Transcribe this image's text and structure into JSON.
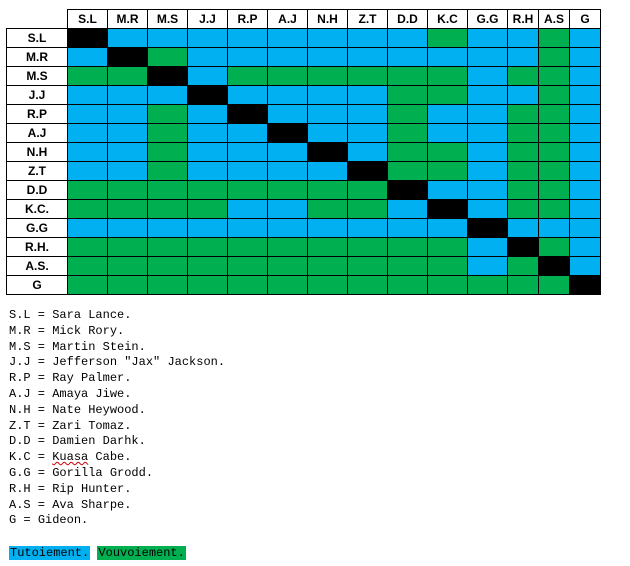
{
  "colors": {
    "tutoiement": "#00b0f0",
    "vouvoiement": "#00b050",
    "self": "#000000"
  },
  "matrix": {
    "columns": [
      "S.L",
      "M.R",
      "M.S",
      "J.J",
      "R.P",
      "A.J",
      "N.H",
      "Z.T",
      "D.D",
      "K.C",
      "G.G",
      "R.H",
      "A.S",
      "G"
    ],
    "rows": [
      {
        "label": "S.L",
        "cells": [
          "X",
          "T",
          "T",
          "T",
          "T",
          "T",
          "T",
          "T",
          "T",
          "V",
          "T",
          "T",
          "V",
          "T"
        ]
      },
      {
        "label": "M.R",
        "cells": [
          "T",
          "X",
          "V",
          "T",
          "T",
          "T",
          "T",
          "T",
          "T",
          "T",
          "T",
          "T",
          "V",
          "T"
        ]
      },
      {
        "label": "M.S",
        "cells": [
          "V",
          "V",
          "X",
          "T",
          "V",
          "V",
          "V",
          "V",
          "V",
          "V",
          "T",
          "V",
          "V",
          "T"
        ]
      },
      {
        "label": "J.J",
        "cells": [
          "T",
          "T",
          "T",
          "X",
          "T",
          "T",
          "T",
          "T",
          "V",
          "V",
          "T",
          "T",
          "V",
          "T"
        ]
      },
      {
        "label": "R.P",
        "cells": [
          "T",
          "T",
          "V",
          "T",
          "X",
          "T",
          "T",
          "T",
          "V",
          "T",
          "T",
          "V",
          "V",
          "T"
        ]
      },
      {
        "label": "A.J",
        "cells": [
          "T",
          "T",
          "V",
          "T",
          "T",
          "X",
          "T",
          "T",
          "V",
          "T",
          "T",
          "V",
          "V",
          "T"
        ]
      },
      {
        "label": "N.H",
        "cells": [
          "T",
          "T",
          "V",
          "T",
          "T",
          "T",
          "X",
          "T",
          "V",
          "V",
          "T",
          "V",
          "V",
          "T"
        ]
      },
      {
        "label": "Z.T",
        "cells": [
          "T",
          "T",
          "V",
          "T",
          "T",
          "T",
          "T",
          "X",
          "V",
          "V",
          "T",
          "V",
          "V",
          "T"
        ]
      },
      {
        "label": "D.D",
        "cells": [
          "V",
          "V",
          "V",
          "V",
          "V",
          "V",
          "V",
          "V",
          "X",
          "T",
          "T",
          "V",
          "V",
          "T"
        ]
      },
      {
        "label": "K.C.",
        "cells": [
          "V",
          "V",
          "V",
          "V",
          "T",
          "T",
          "V",
          "V",
          "T",
          "X",
          "T",
          "V",
          "V",
          "T"
        ]
      },
      {
        "label": "G.G",
        "cells": [
          "T",
          "T",
          "T",
          "T",
          "T",
          "T",
          "T",
          "T",
          "T",
          "T",
          "X",
          "T",
          "T",
          "T"
        ]
      },
      {
        "label": "R.H.",
        "cells": [
          "V",
          "V",
          "V",
          "V",
          "V",
          "V",
          "V",
          "V",
          "V",
          "V",
          "T",
          "X",
          "V",
          "T"
        ]
      },
      {
        "label": "A.S.",
        "cells": [
          "V",
          "V",
          "V",
          "V",
          "V",
          "V",
          "V",
          "V",
          "V",
          "V",
          "T",
          "V",
          "X",
          "T"
        ]
      },
      {
        "label": "G",
        "cells": [
          "V",
          "V",
          "V",
          "V",
          "V",
          "V",
          "V",
          "V",
          "V",
          "V",
          "V",
          "V",
          "V",
          "X"
        ]
      }
    ]
  },
  "legend": [
    {
      "abbr": "S.L",
      "name": "Sara Lance."
    },
    {
      "abbr": "M.R",
      "name": "Mick Rory."
    },
    {
      "abbr": "M.S",
      "name": "Martin Stein."
    },
    {
      "abbr": "J.J",
      "name": "Jefferson \"Jax\" Jackson."
    },
    {
      "abbr": "R.P",
      "name": "Ray Palmer."
    },
    {
      "abbr": "A.J",
      "name": "Amaya Jiwe."
    },
    {
      "abbr": "N.H",
      "name": "Nate Heywood."
    },
    {
      "abbr": "Z.T",
      "name": "Zari Tomaz."
    },
    {
      "abbr": "D.D",
      "name": "Damien Darhk."
    },
    {
      "abbr": "K.C",
      "name": "Kuasa Cabe."
    },
    {
      "abbr": "G.G",
      "name": "Gorilla Grodd."
    },
    {
      "abbr": "R.H",
      "name": "Rip Hunter."
    },
    {
      "abbr": "A.S",
      "name": "Ava Sharpe."
    },
    {
      "abbr": "G",
      "name": "Gideon."
    }
  ],
  "keys": {
    "tutoiement": "Tutoiement.",
    "vouvoiement": "Vouvoiement."
  }
}
